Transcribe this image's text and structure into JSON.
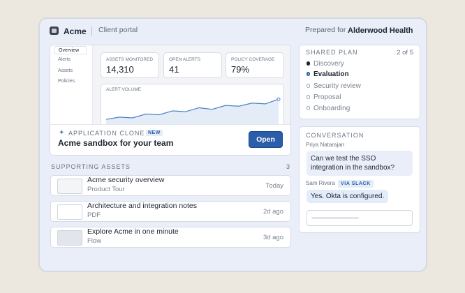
{
  "header": {
    "brand": "Acme",
    "section": "Client portal",
    "prepared_label": "Prepared for",
    "client": "Alderwood Health"
  },
  "preview": {
    "nav": [
      "Overview",
      "Alerts",
      "Assets",
      "Policies"
    ],
    "stats": [
      {
        "label": "ASSETS MONITORED",
        "value": "14,310"
      },
      {
        "label": "OPEN ALERTS",
        "value": "41"
      },
      {
        "label": "POLICY COVERAGE",
        "value": "79%"
      }
    ],
    "alert_volume": {
      "label": "ALERT VOLUME",
      "values": [
        7,
        10,
        9,
        14,
        13,
        18,
        17,
        22,
        20,
        25,
        24,
        28,
        27,
        33
      ]
    }
  },
  "clone": {
    "kicker": "APPLICATION CLONE",
    "badge": "NEW",
    "title": "Acme sandbox for your team",
    "button": "Open"
  },
  "assets": {
    "title": "SUPPORTING ASSETS",
    "count": "3",
    "items": [
      {
        "title": "Acme security overview",
        "type": "Product Tour",
        "time": "Today"
      },
      {
        "title": "Architecture and integration notes",
        "type": "PDF",
        "time": "2d ago"
      },
      {
        "title": "Explore Acme in one minute",
        "type": "Flow",
        "time": "3d ago"
      }
    ]
  },
  "plan": {
    "title": "SHARED PLAN",
    "progress": "2 of 5",
    "steps": [
      "Discovery",
      "Evaluation",
      "Security review",
      "Proposal",
      "Onboarding"
    ]
  },
  "conversation": {
    "title": "CONVERSATION",
    "messages": [
      {
        "author": "Priya Natarajan",
        "text": "Can we test the SSO integration in the sandbox?"
      },
      {
        "author": "Sam Rivera",
        "channel": "VIA SLACK",
        "text": "Yes. Okta is configured."
      }
    ]
  }
}
